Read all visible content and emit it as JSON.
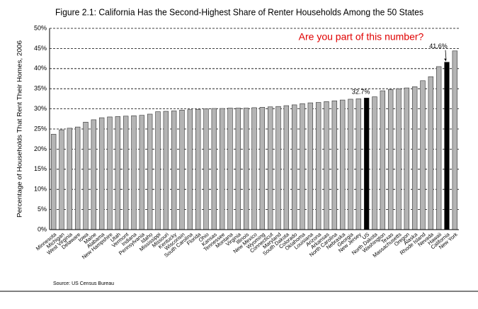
{
  "chart_data": {
    "type": "bar",
    "title": "Figure 2.1: California Has the Second-Highest Share of Renter Households Among the 50 States",
    "y_label": "Percentage of Households That Rent Their Homes, 2006",
    "annotation": "Are you part of this number?",
    "source": "Source: US Census Bureau",
    "categories": [
      "Minnesota",
      "Michigan",
      "West Virginia",
      "Delaware",
      "Iowa",
      "Maine",
      "Alabama",
      "New Hampshire",
      "Utah",
      "Vermont",
      "Indiana",
      "Pennsylvania",
      "Idaho",
      "Mississippi",
      "Missouri",
      "Kentucky",
      "Wisconsin",
      "South Carolina",
      "Florida",
      "Ohio",
      "Kansas",
      "Tennessee",
      "Montana",
      "Virginia",
      "Illinois",
      "New Mexico",
      "Wyoming",
      "Connecticut",
      "Maryland",
      "South Dakota",
      "Colorado",
      "Oklahoma",
      "Louisiana",
      "Arizona",
      "Arkansas",
      "North Carolina",
      "Nebraska",
      "Georgia",
      "New Jersey",
      "US",
      "North Dakota",
      "Washington",
      "Texas",
      "Massachusetts",
      "Oregon",
      "Alaska",
      "Rhode Island",
      "Nevada",
      "Hawaii",
      "California",
      "New York"
    ],
    "values": [
      23.7,
      24.8,
      25.2,
      25.5,
      26.7,
      27.3,
      27.8,
      28.0,
      28.1,
      28.2,
      28.3,
      28.4,
      28.7,
      29.3,
      29.4,
      29.5,
      29.7,
      29.8,
      29.9,
      30.0,
      30.1,
      30.1,
      30.2,
      30.2,
      30.2,
      30.3,
      30.4,
      30.5,
      30.6,
      30.8,
      31.0,
      31.3,
      31.5,
      31.6,
      31.8,
      32.0,
      32.2,
      32.4,
      32.5,
      32.7,
      33.0,
      34.5,
      34.8,
      35.0,
      35.2,
      35.5,
      37.0,
      38.0,
      40.5,
      41.6,
      44.4
    ],
    "value_labels": [
      null,
      null,
      null,
      null,
      null,
      null,
      null,
      null,
      null,
      null,
      null,
      null,
      null,
      null,
      null,
      null,
      null,
      null,
      null,
      null,
      null,
      null,
      null,
      null,
      null,
      null,
      null,
      null,
      null,
      null,
      null,
      null,
      null,
      null,
      null,
      null,
      null,
      null,
      null,
      "32.7%",
      null,
      null,
      null,
      null,
      null,
      null,
      null,
      null,
      null,
      "41.6%",
      null
    ],
    "colors": [
      "#b4b4b4",
      "#b4b4b4",
      "#b4b4b4",
      "#b4b4b4",
      "#b4b4b4",
      "#b4b4b4",
      "#b4b4b4",
      "#b4b4b4",
      "#b4b4b4",
      "#b4b4b4",
      "#b4b4b4",
      "#b4b4b4",
      "#b4b4b4",
      "#b4b4b4",
      "#b4b4b4",
      "#b4b4b4",
      "#b4b4b4",
      "#b4b4b4",
      "#b4b4b4",
      "#b4b4b4",
      "#b4b4b4",
      "#b4b4b4",
      "#b4b4b4",
      "#b4b4b4",
      "#b4b4b4",
      "#b4b4b4",
      "#b4b4b4",
      "#b4b4b4",
      "#b4b4b4",
      "#b4b4b4",
      "#b4b4b4",
      "#b4b4b4",
      "#b4b4b4",
      "#b4b4b4",
      "#b4b4b4",
      "#b4b4b4",
      "#b4b4b4",
      "#b4b4b4",
      "#b4b4b4",
      "#000000",
      "#b4b4b4",
      "#b4b4b4",
      "#b4b4b4",
      "#b4b4b4",
      "#b4b4b4",
      "#b4b4b4",
      "#b4b4b4",
      "#b4b4b4",
      "#b4b4b4",
      "#000000",
      "#b4b4b4"
    ],
    "ylim": [
      0,
      50
    ],
    "yticks": [
      {
        "value": 0,
        "label": "0%"
      },
      {
        "value": 5,
        "label": "5%"
      },
      {
        "value": 10,
        "label": "10%"
      },
      {
        "value": 15,
        "label": "15%"
      },
      {
        "value": 20,
        "label": "20%"
      },
      {
        "value": 25,
        "label": "25%"
      },
      {
        "value": 30,
        "label": "30%"
      },
      {
        "value": 35,
        "label": "35%"
      },
      {
        "value": 40,
        "label": "40%"
      },
      {
        "value": 45,
        "label": "45%"
      },
      {
        "value": 50,
        "label": "50%"
      }
    ],
    "grid": true
  }
}
